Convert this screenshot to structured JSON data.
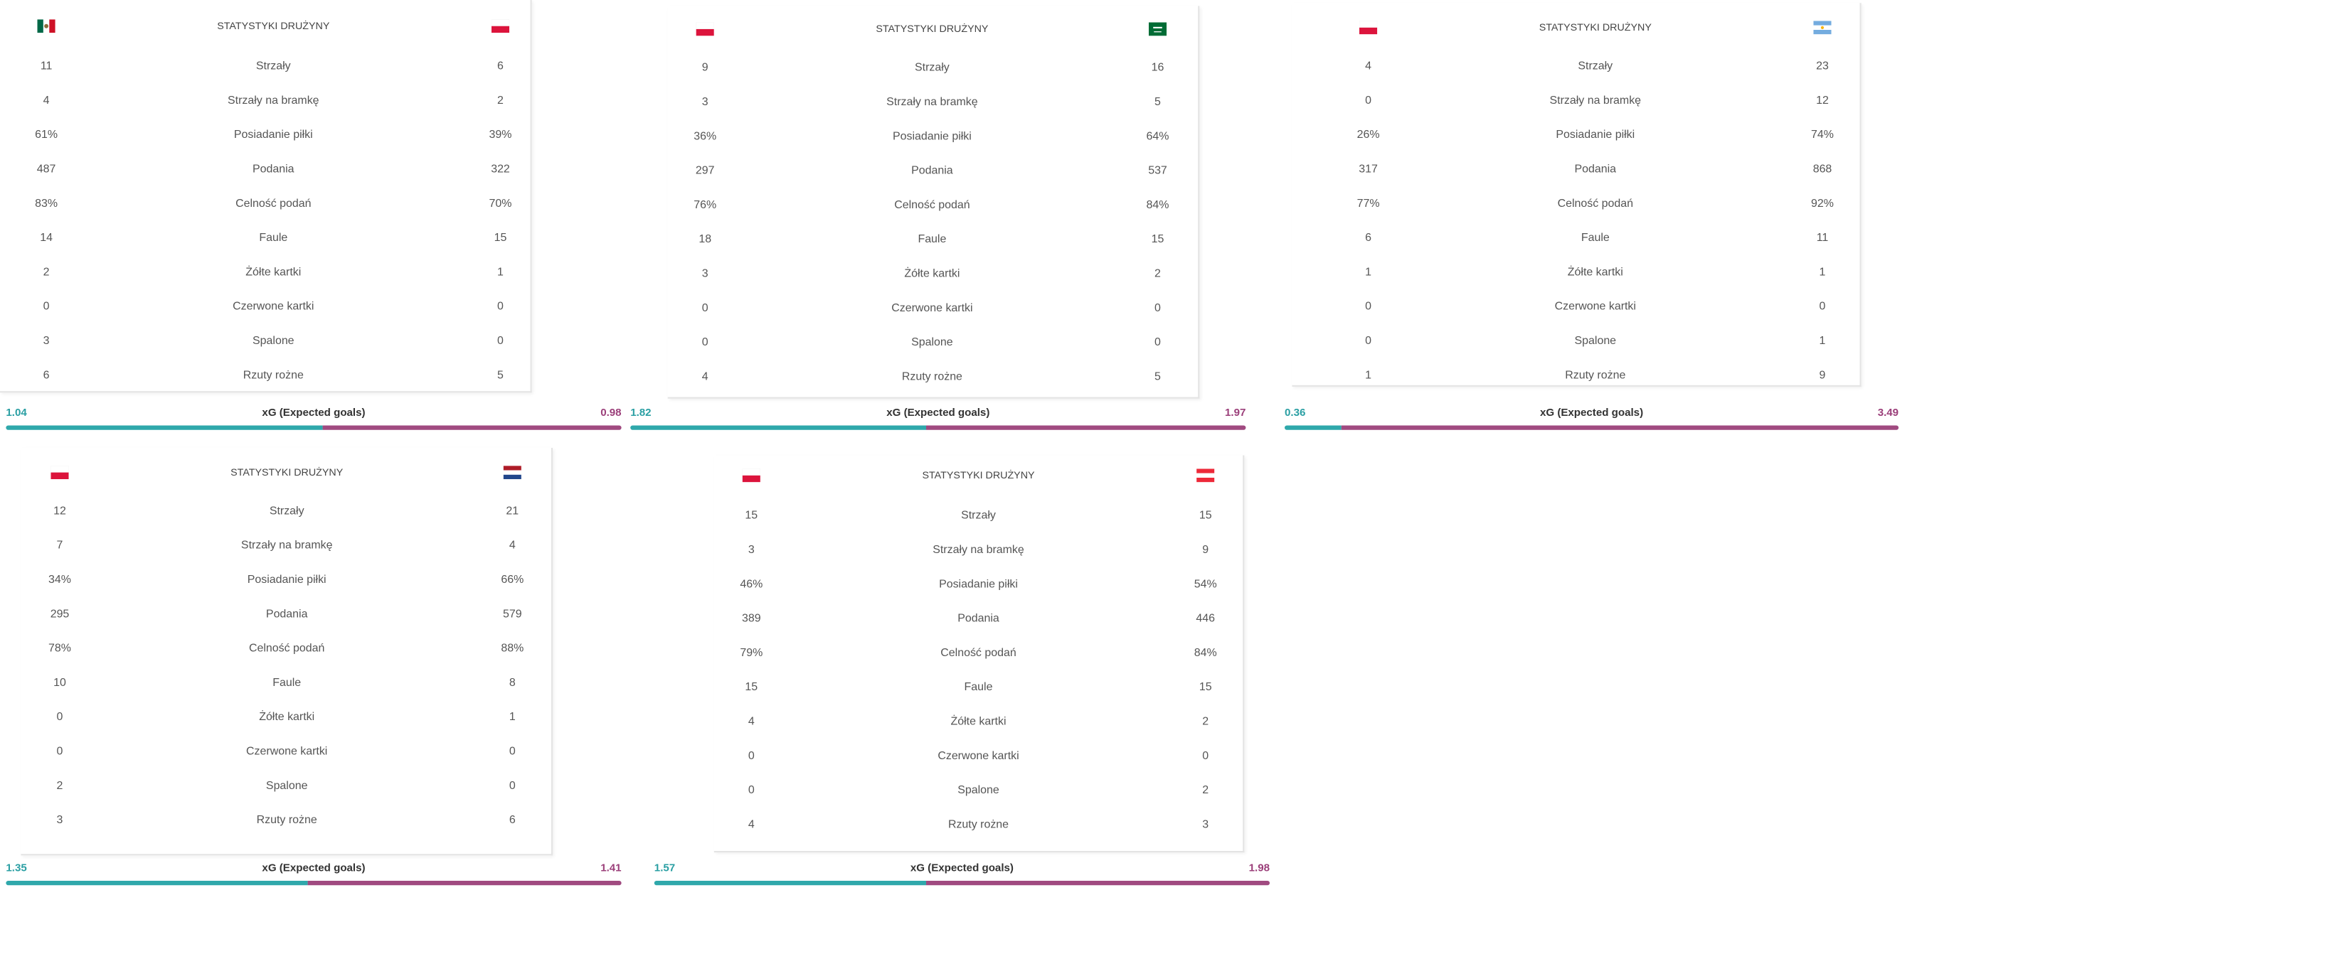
{
  "matches": [
    {
      "header": "STATYSTYKI DRUŻYNY",
      "stats": [
        {
          "label": "Strzały",
          "home": "11",
          "away": "6"
        },
        {
          "label": "Strzały na bramkę",
          "home": "4",
          "away": "2"
        },
        {
          "label": "Posiadanie piłki",
          "home": "61%",
          "away": "39%"
        },
        {
          "label": "Podania",
          "home": "487",
          "away": "322"
        },
        {
          "label": "Celność podań",
          "home": "83%",
          "away": "70%"
        },
        {
          "label": "Faule",
          "home": "14",
          "away": "15"
        },
        {
          "label": "Żółte kartki",
          "home": "2",
          "away": "1"
        },
        {
          "label": "Czerwone kartki",
          "home": "0",
          "away": "0"
        },
        {
          "label": "Spalone",
          "home": "3",
          "away": "0"
        },
        {
          "label": "Rzuty rożne",
          "home": "6",
          "away": "5"
        }
      ],
      "xg": {
        "label": "xG (Expected goals)",
        "home": 1.04,
        "away": 0.98
      }
    },
    {
      "header": "STATYSTYKI DRUŻYNY",
      "stats": [
        {
          "label": "Strzały",
          "home": "9",
          "away": "16"
        },
        {
          "label": "Strzały na bramkę",
          "home": "3",
          "away": "5"
        },
        {
          "label": "Posiadanie piłki",
          "home": "36%",
          "away": "64%"
        },
        {
          "label": "Podania",
          "home": "297",
          "away": "537"
        },
        {
          "label": "Celność podań",
          "home": "76%",
          "away": "84%"
        },
        {
          "label": "Faule",
          "home": "18",
          "away": "15"
        },
        {
          "label": "Żółte kartki",
          "home": "3",
          "away": "2"
        },
        {
          "label": "Czerwone kartki",
          "home": "0",
          "away": "0"
        },
        {
          "label": "Spalone",
          "home": "0",
          "away": "0"
        },
        {
          "label": "Rzuty rożne",
          "home": "4",
          "away": "5"
        }
      ],
      "xg": {
        "label": "xG (Expected goals)",
        "home": 1.82,
        "away": 1.97
      }
    },
    {
      "header": "STATYSTYKI DRUŻYNY",
      "stats": [
        {
          "label": "Strzały",
          "home": "4",
          "away": "23"
        },
        {
          "label": "Strzały na bramkę",
          "home": "0",
          "away": "12"
        },
        {
          "label": "Posiadanie piłki",
          "home": "26%",
          "away": "74%"
        },
        {
          "label": "Podania",
          "home": "317",
          "away": "868"
        },
        {
          "label": "Celność podań",
          "home": "77%",
          "away": "92%"
        },
        {
          "label": "Faule",
          "home": "6",
          "away": "11"
        },
        {
          "label": "Żółte kartki",
          "home": "1",
          "away": "1"
        },
        {
          "label": "Czerwone kartki",
          "home": "0",
          "away": "0"
        },
        {
          "label": "Spalone",
          "home": "0",
          "away": "1"
        },
        {
          "label": "Rzuty rożne",
          "home": "1",
          "away": "9"
        }
      ],
      "xg": {
        "label": "xG (Expected goals)",
        "home": 0.36,
        "away": 3.49
      }
    },
    {
      "header": "STATYSTYKI DRUŻYNY",
      "stats": [
        {
          "label": "Strzały",
          "home": "12",
          "away": "21"
        },
        {
          "label": "Strzały na bramkę",
          "home": "7",
          "away": "4"
        },
        {
          "label": "Posiadanie piłki",
          "home": "34%",
          "away": "66%"
        },
        {
          "label": "Podania",
          "home": "295",
          "away": "579"
        },
        {
          "label": "Celność podań",
          "home": "78%",
          "away": "88%"
        },
        {
          "label": "Faule",
          "home": "10",
          "away": "8"
        },
        {
          "label": "Żółte kartki",
          "home": "0",
          "away": "1"
        },
        {
          "label": "Czerwone kartki",
          "home": "0",
          "away": "0"
        },
        {
          "label": "Spalone",
          "home": "2",
          "away": "0"
        },
        {
          "label": "Rzuty rożne",
          "home": "3",
          "away": "6"
        }
      ],
      "xg": {
        "label": "xG (Expected goals)",
        "home": 1.35,
        "away": 1.41
      }
    },
    {
      "header": "STATYSTYKI DRUŻYNY",
      "stats": [
        {
          "label": "Strzały",
          "home": "15",
          "away": "15"
        },
        {
          "label": "Strzały na bramkę",
          "home": "3",
          "away": "9"
        },
        {
          "label": "Posiadanie piłki",
          "home": "46%",
          "away": "54%"
        },
        {
          "label": "Podania",
          "home": "389",
          "away": "446"
        },
        {
          "label": "Celność podań",
          "home": "79%",
          "away": "84%"
        },
        {
          "label": "Faule",
          "home": "15",
          "away": "15"
        },
        {
          "label": "Żółte kartki",
          "home": "4",
          "away": "2"
        },
        {
          "label": "Czerwone kartki",
          "home": "0",
          "away": "0"
        },
        {
          "label": "Spalone",
          "home": "0",
          "away": "2"
        },
        {
          "label": "Rzuty rożne",
          "home": "4",
          "away": "3"
        }
      ],
      "xg": {
        "label": "xG (Expected goals)",
        "home": 1.57,
        "away": 1.98
      }
    }
  ]
}
